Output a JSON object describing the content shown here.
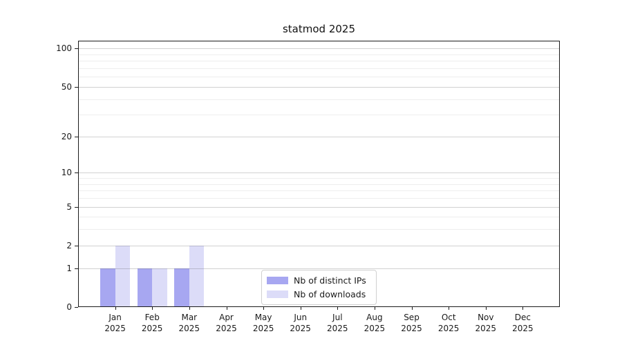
{
  "chart_data": {
    "type": "bar",
    "title": "statmod 2025",
    "categories": [
      "Jan",
      "Feb",
      "Mar",
      "Apr",
      "May",
      "Jun",
      "Jul",
      "Aug",
      "Sep",
      "Oct",
      "Nov",
      "Dec"
    ],
    "category_year": "2025",
    "series": [
      {
        "name": "Nb of distinct IPs",
        "color": "#a7a7f1",
        "values": [
          1,
          1,
          1,
          0,
          0,
          0,
          0,
          0,
          0,
          0,
          0,
          0
        ]
      },
      {
        "name": "Nb of downloads",
        "color": "#dcdcf8",
        "values": [
          2,
          1,
          2,
          0,
          0,
          0,
          0,
          0,
          0,
          0,
          0,
          0
        ]
      }
    ],
    "yscale": "log1p",
    "yticks": [
      0,
      1,
      2,
      5,
      10,
      20,
      50,
      100
    ],
    "yticks_minor": [
      3,
      4,
      6,
      7,
      8,
      9,
      30,
      40,
      60,
      70,
      80,
      90
    ],
    "ylim": [
      0,
      115
    ],
    "grid": "horizontal",
    "legend_position": "bottom-center",
    "colors": {
      "axis": "#1a1a1a",
      "grid_major": "#d0d0d0",
      "grid_minor": "#ebebeb",
      "background": "#ffffff"
    }
  }
}
